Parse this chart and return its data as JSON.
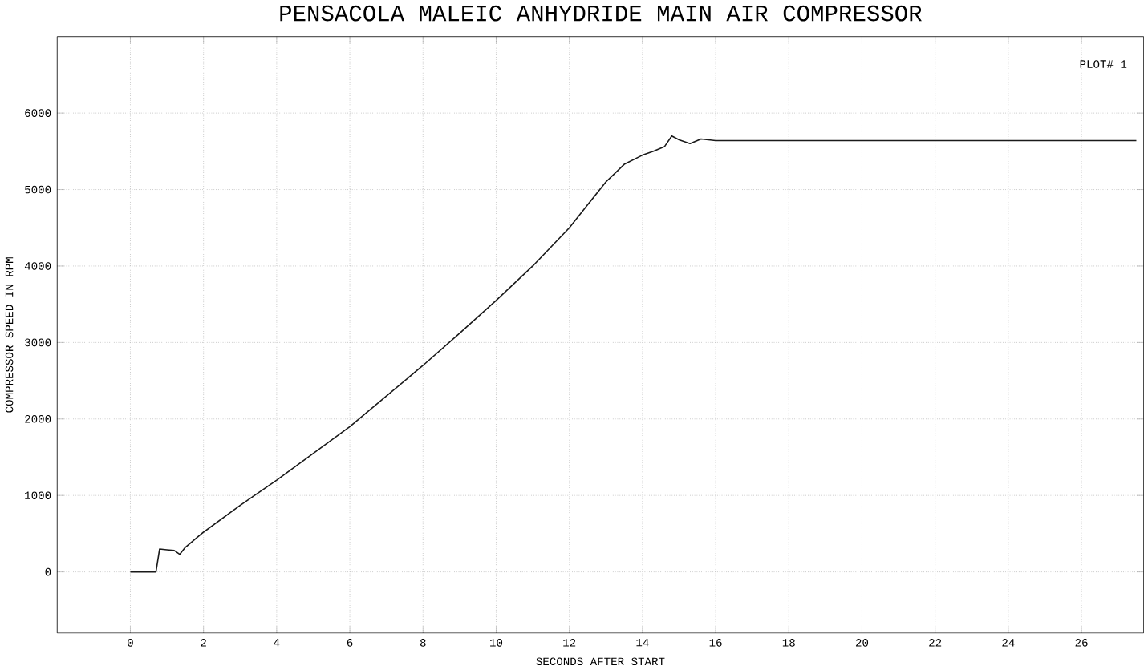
{
  "chart_data": {
    "type": "line",
    "title": "PENSACOLA MALEIC ANHYDRIDE MAIN AIR COMPRESSOR",
    "xlabel": "SECONDS AFTER START",
    "ylabel": "COMPRESSOR SPEED IN RPM",
    "annotations": [
      "PLOT# 1"
    ],
    "x": [
      0,
      0.7,
      0.8,
      1.0,
      1.2,
      1.35,
      1.5,
      2,
      3,
      4,
      5,
      6,
      7,
      8,
      9,
      10,
      11,
      12,
      12.5,
      13,
      13.5,
      14,
      14.3,
      14.6,
      14.8,
      15.0,
      15.3,
      15.6,
      16,
      20,
      24,
      27.5
    ],
    "series": [
      {
        "color": "#1a1a1a",
        "values": [
          0,
          0,
          300,
          290,
          280,
          230,
          320,
          520,
          870,
          1200,
          1550,
          1900,
          2300,
          2700,
          3120,
          3550,
          4000,
          4500,
          4800,
          5100,
          5330,
          5450,
          5500,
          5560,
          5700,
          5650,
          5600,
          5660,
          5640,
          5640,
          5640,
          5640
        ]
      }
    ],
    "xlim": [
      -2,
      27.7
    ],
    "ylim": [
      -800,
      7000
    ],
    "xticks": [
      0,
      2,
      4,
      6,
      8,
      10,
      12,
      14,
      16,
      18,
      20,
      22,
      24,
      26
    ],
    "yticks": [
      0,
      1000,
      2000,
      3000,
      4000,
      5000,
      6000
    ],
    "grid": true,
    "marker": "none",
    "line_style": "solid"
  }
}
